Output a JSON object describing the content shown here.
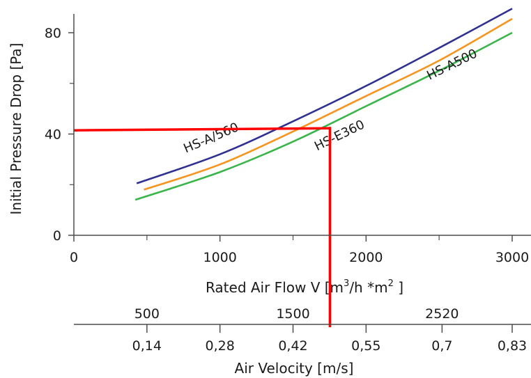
{
  "chart_data": {
    "type": "line",
    "ylabel": "Initial Pressure Drop [Pa]",
    "ylim": [
      0,
      90
    ],
    "yticks": [
      {
        "value": 0,
        "label": "0"
      },
      {
        "value": 40,
        "label": "40"
      },
      {
        "value": 80,
        "label": "80"
      }
    ],
    "xlabel": {
      "main": "Rated Air Flow V [m",
      "sup1": "3",
      "mid": "/h *m",
      "sup2": "2",
      "end": " ]"
    },
    "xlim": [
      0,
      3000
    ],
    "xticks": [
      {
        "value": 0,
        "label": "0"
      },
      {
        "value": 1000,
        "label": "1000"
      },
      {
        "value": 2000,
        "label": "2000"
      },
      {
        "value": 3000,
        "label": "3000"
      }
    ],
    "series": [
      {
        "name": "HS-A/560",
        "color": "#2e3192",
        "x": [
          430,
          1000,
          1500,
          2000,
          2500,
          3000
        ],
        "y": [
          20.5,
          32,
          45,
          59,
          74,
          89.5
        ]
      },
      {
        "name": "HS-A500",
        "color": "#f7941d",
        "x": [
          480,
          1000,
          1500,
          2000,
          2500,
          3000
        ],
        "y": [
          18,
          28,
          41,
          55,
          69,
          85.5
        ]
      },
      {
        "name": "HS-E360",
        "color": "#39b54a",
        "x": [
          420,
          1000,
          1500,
          2000,
          2500,
          3000
        ],
        "y": [
          14,
          25,
          37,
          51,
          65,
          80
        ]
      }
    ],
    "annotations": [
      {
        "text": "HS-A/560",
        "x": 950,
        "y": 37,
        "angle": -23
      },
      {
        "text": "HS-A500",
        "x": 2600,
        "y": 66,
        "angle": -26
      },
      {
        "text": "HS-E360",
        "x": 1830,
        "y": 38,
        "angle": -26
      }
    ],
    "readout": {
      "color": "#ff0000",
      "flow": 1750,
      "pressure": 42
    },
    "secondary_axis": {
      "upper_labels": [
        {
          "value": 500,
          "label": "500"
        },
        {
          "value": 1500,
          "label": "1500"
        },
        {
          "value": 2520,
          "label": "2520"
        }
      ],
      "lower_labels": [
        {
          "value": 500,
          "label": "0,14"
        },
        {
          "value": 1000,
          "label": "0,28"
        },
        {
          "value": 1500,
          "label": "0,42"
        },
        {
          "value": 2000,
          "label": "0,55"
        },
        {
          "value": 2520,
          "label": "0,7"
        },
        {
          "value": 3000,
          "label": "0,83"
        }
      ],
      "title": "Air Velocity [m/s]"
    }
  }
}
